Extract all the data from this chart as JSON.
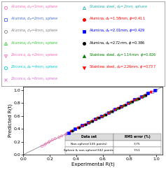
{
  "xlabel": "Experimental R(t)",
  "ylabel": "Predicted R(t)",
  "xlim": [
    0.05,
    1.05
  ],
  "ylim": [
    0.05,
    1.05
  ],
  "xticks": [
    0,
    0.2,
    0.4,
    0.6,
    0.8,
    1
  ],
  "yticks": [
    0,
    0.2,
    0.4,
    0.6,
    0.8,
    1
  ],
  "legend_left": [
    {
      "label": "Alumina, $d_p$=1mm, sphere",
      "color": "#FF69B4",
      "marker": "o",
      "filled": false
    },
    {
      "label": "Alumina, $d_p$=2mm, sphere",
      "color": "#4169E1",
      "marker": "s",
      "filled": false
    },
    {
      "label": "Alumina, $d_p$=4mm, sphere",
      "color": "#808080",
      "marker": "o",
      "filled": false
    },
    {
      "label": "Alumina, $d_p$=6mm, sphere",
      "color": "#32CD32",
      "marker": "^",
      "filled": false
    },
    {
      "label": "Zirconia, $d_p$=2mm, sphere",
      "color": "#FF69B4",
      "marker": "v",
      "filled": false
    },
    {
      "label": "Zirconia, $d_p$=4mm, sphere",
      "color": "#00CED1",
      "marker": "o",
      "filled": false
    },
    {
      "label": "Zirconia, $d_p$=6mm, sphere",
      "color": "#DA70D6",
      "marker": "x",
      "filled": false
    },
    {
      "label": "Zirconia, $d_p$=6mm, sphere",
      "color": "#DA70D6",
      "marker": "x",
      "filled": false
    }
  ],
  "legend_right": [
    {
      "label": "Stainless steel, $d_p$=2mm, sphere",
      "color": "#20B2AA",
      "marker": "^",
      "filled": false
    },
    {
      "label": "Alumina, $d_p$=1.58mm, $\\phi$=0.411",
      "color": "#FF0000",
      "marker": "o",
      "filled": true
    },
    {
      "label": "Alumina, $d_p$=2.01mm, $\\phi$=0.429",
      "color": "#0000FF",
      "marker": "s",
      "filled": true
    },
    {
      "label": "Alumina, $d_p$=2.72mm, $\\phi$=0.386",
      "color": "#000000",
      "marker": "o",
      "filled": true
    },
    {
      "label": "Stainless steel, $d_p$=1.14mm, $\\phi$=0.826",
      "color": "#008000",
      "marker": "^",
      "filled": true
    },
    {
      "label": "Stainless steel, $d_p$=2.26mm, $\\phi$=0.737",
      "color": "#FF0000",
      "marker": "v",
      "filled": true
    }
  ],
  "table_headers": [
    "Data set",
    "RMS error (%)"
  ],
  "table_rows": [
    [
      "Non-sphere(135 points)",
      "3.75"
    ],
    [
      "Sphere & non-sphere(342 points)",
      "7.51"
    ]
  ],
  "scatter_data": {
    "alumina_1mm_sphere": {
      "color": "#FF69B4",
      "marker": "o",
      "filled": false,
      "x": [
        0.14,
        0.16,
        0.17,
        0.19,
        0.2,
        0.22,
        0.24,
        0.27,
        0.29,
        0.32,
        0.35,
        0.38,
        0.42,
        0.46,
        0.5,
        0.54,
        0.59,
        0.64,
        0.7,
        0.75,
        0.8,
        0.86,
        0.91,
        0.96
      ],
      "y": [
        0.13,
        0.15,
        0.17,
        0.19,
        0.21,
        0.23,
        0.25,
        0.27,
        0.29,
        0.31,
        0.34,
        0.38,
        0.42,
        0.46,
        0.5,
        0.55,
        0.59,
        0.64,
        0.7,
        0.75,
        0.8,
        0.85,
        0.91,
        0.96
      ]
    },
    "alumina_2mm_sphere": {
      "color": "#4169E1",
      "marker": "s",
      "filled": false,
      "x": [
        0.33,
        0.37,
        0.42,
        0.47,
        0.52,
        0.57,
        0.62,
        0.67,
        0.72,
        0.77,
        0.82,
        0.87,
        0.92,
        0.97,
        1.0
      ],
      "y": [
        0.33,
        0.37,
        0.42,
        0.47,
        0.52,
        0.57,
        0.62,
        0.67,
        0.72,
        0.77,
        0.82,
        0.87,
        0.92,
        0.97,
        1.0
      ]
    },
    "alumina_4mm_sphere": {
      "color": "#808080",
      "marker": "o",
      "filled": false,
      "x": [
        0.44,
        0.5,
        0.56,
        0.62,
        0.68,
        0.74,
        0.8,
        0.86,
        0.92
      ],
      "y": [
        0.44,
        0.5,
        0.56,
        0.62,
        0.68,
        0.74,
        0.8,
        0.86,
        0.92
      ]
    },
    "alumina_6mm_sphere": {
      "color": "#32CD32",
      "marker": "^",
      "filled": false,
      "x": [
        0.56,
        0.61,
        0.66,
        0.71,
        0.76,
        0.81,
        0.86,
        0.91
      ],
      "y": [
        0.57,
        0.61,
        0.66,
        0.71,
        0.76,
        0.8,
        0.85,
        0.9
      ]
    },
    "zirconia_2mm_sphere": {
      "color": "#FF69B4",
      "marker": "v",
      "filled": false,
      "x": [
        0.33,
        0.38,
        0.43,
        0.48,
        0.53,
        0.58,
        0.63,
        0.68,
        0.73,
        0.78,
        0.83,
        0.88,
        0.93,
        0.97
      ],
      "y": [
        0.33,
        0.38,
        0.43,
        0.48,
        0.54,
        0.59,
        0.64,
        0.69,
        0.74,
        0.79,
        0.84,
        0.89,
        0.94,
        0.97
      ]
    },
    "zirconia_4mm_sphere": {
      "color": "#00CED1",
      "marker": "o",
      "filled": false,
      "x": [
        0.44,
        0.5,
        0.56,
        0.62,
        0.68,
        0.74,
        0.8,
        0.86,
        0.92
      ],
      "y": [
        0.44,
        0.5,
        0.56,
        0.62,
        0.68,
        0.74,
        0.8,
        0.86,
        0.92
      ]
    },
    "zirconia_6mm_sphere": {
      "color": "#DA70D6",
      "marker": "x",
      "filled": false,
      "x": [
        0.54,
        0.61,
        0.68,
        0.75,
        0.82,
        0.89,
        0.95
      ],
      "y": [
        0.54,
        0.61,
        0.68,
        0.75,
        0.82,
        0.89,
        0.95
      ]
    },
    "ss_2mm_sphere": {
      "color": "#20B2AA",
      "marker": "^",
      "filled": false,
      "x": [
        0.38,
        0.45,
        0.52,
        0.59,
        0.66,
        0.73,
        0.8,
        0.87,
        0.94
      ],
      "y": [
        0.38,
        0.45,
        0.52,
        0.59,
        0.66,
        0.73,
        0.8,
        0.87,
        0.94
      ]
    },
    "alumina_158_ns": {
      "color": "#FF0000",
      "marker": "o",
      "filled": true,
      "x": [
        0.36,
        0.41,
        0.46,
        0.51,
        0.56,
        0.61,
        0.66,
        0.71,
        0.76,
        0.81,
        0.86,
        0.91,
        0.96
      ],
      "y": [
        0.37,
        0.42,
        0.47,
        0.52,
        0.57,
        0.62,
        0.67,
        0.72,
        0.77,
        0.82,
        0.87,
        0.92,
        0.97
      ]
    },
    "alumina_201_ns": {
      "color": "#0000FF",
      "marker": "s",
      "filled": true,
      "x": [
        0.34,
        0.39,
        0.44,
        0.49,
        0.54,
        0.59,
        0.64,
        0.69,
        0.74,
        0.79,
        0.84,
        0.89,
        0.94,
        0.99
      ],
      "y": [
        0.34,
        0.4,
        0.45,
        0.5,
        0.55,
        0.6,
        0.65,
        0.7,
        0.75,
        0.8,
        0.85,
        0.9,
        0.95,
        1.0
      ]
    },
    "alumina_272_ns": {
      "color": "#000000",
      "marker": "o",
      "filled": true,
      "x": [
        0.37,
        0.42,
        0.47,
        0.52,
        0.57,
        0.62,
        0.67,
        0.72,
        0.77,
        0.82,
        0.87,
        0.92
      ],
      "y": [
        0.37,
        0.42,
        0.47,
        0.52,
        0.57,
        0.62,
        0.67,
        0.72,
        0.77,
        0.82,
        0.87,
        0.92
      ]
    },
    "ss_114_ns": {
      "color": "#008000",
      "marker": "^",
      "filled": true,
      "x": [
        0.5,
        0.55,
        0.6,
        0.65,
        0.7,
        0.75,
        0.8,
        0.85,
        0.9
      ],
      "y": [
        0.51,
        0.56,
        0.61,
        0.66,
        0.71,
        0.76,
        0.81,
        0.86,
        0.91
      ]
    },
    "ss_226_ns": {
      "color": "#FF0000",
      "marker": "v",
      "filled": true,
      "x": [
        0.44,
        0.49,
        0.54,
        0.59,
        0.64,
        0.69,
        0.74,
        0.79,
        0.84,
        0.89
      ],
      "y": [
        0.44,
        0.49,
        0.54,
        0.59,
        0.64,
        0.69,
        0.74,
        0.79,
        0.84,
        0.89
      ]
    }
  }
}
